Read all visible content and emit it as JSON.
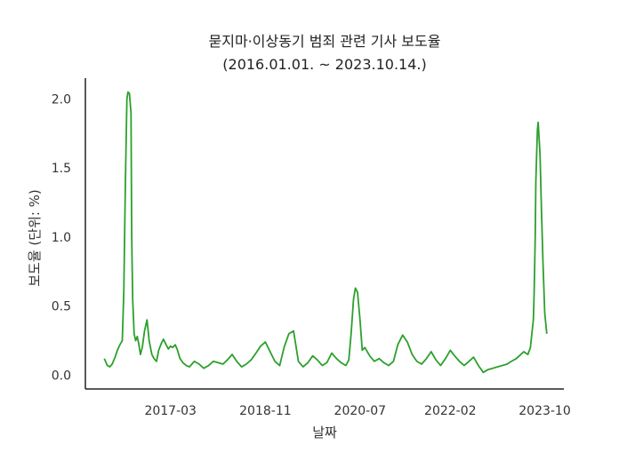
{
  "chart_data": {
    "type": "line",
    "title": "묻지마·이상동기 범죄 관련 기사 보도율",
    "subtitle": "(2016.01.01. ~ 2023.10.14.)",
    "xlabel": "날짜",
    "ylabel": "보도율 (단위: %)",
    "xlim": [
      "2015-09-01",
      "2024-02-01"
    ],
    "ylim": [
      -0.1,
      2.15
    ],
    "x_ticks": [
      {
        "date": "2017-03-01",
        "label": "2017-03"
      },
      {
        "date": "2018-11-01",
        "label": "2018-11"
      },
      {
        "date": "2020-07-01",
        "label": "2020-07"
      },
      {
        "date": "2022-02-01",
        "label": "2022-02"
      },
      {
        "date": "2023-10-01",
        "label": "2023-10"
      }
    ],
    "y_ticks": [
      {
        "value": 0.0,
        "label": "0.0"
      },
      {
        "value": 0.5,
        "label": "0.5"
      },
      {
        "value": 1.0,
        "label": "1.0"
      },
      {
        "value": 1.5,
        "label": "1.5"
      },
      {
        "value": 2.0,
        "label": "2.0"
      }
    ],
    "grid": false,
    "legend": "none",
    "line_color": "#2ca02c",
    "series": [
      {
        "x": [
          "2016-01-01",
          "2016-01-20",
          "2016-02-05",
          "2016-02-20",
          "2016-03-10",
          "2016-03-25",
          "2016-04-10",
          "2016-04-25",
          "2016-05-05",
          "2016-05-15",
          "2016-05-25",
          "2016-06-01",
          "2016-06-10",
          "2016-06-20",
          "2016-06-25",
          "2016-07-01",
          "2016-07-10",
          "2016-07-20",
          "2016-07-30",
          "2016-08-10",
          "2016-08-20",
          "2016-09-01",
          "2016-09-15",
          "2016-10-01",
          "2016-10-15",
          "2016-11-01",
          "2016-11-15",
          "2016-12-01",
          "2016-12-15",
          "2017-01-01",
          "2017-01-15",
          "2017-02-01",
          "2017-02-15",
          "2017-03-01",
          "2017-03-15",
          "2017-04-01",
          "2017-04-15",
          "2017-05-01",
          "2017-05-20",
          "2017-06-10",
          "2017-07-01",
          "2017-08-01",
          "2017-09-01",
          "2017-10-01",
          "2017-11-01",
          "2017-12-01",
          "2018-01-01",
          "2018-02-01",
          "2018-03-01",
          "2018-04-01",
          "2018-05-01",
          "2018-06-01",
          "2018-07-01",
          "2018-08-01",
          "2018-09-01",
          "2018-10-01",
          "2018-11-01",
          "2018-12-01",
          "2019-01-01",
          "2019-02-01",
          "2019-03-01",
          "2019-04-01",
          "2019-05-01",
          "2019-06-01",
          "2019-07-01",
          "2019-08-01",
          "2019-09-01",
          "2019-10-01",
          "2019-11-01",
          "2019-12-01",
          "2020-01-01",
          "2020-02-01",
          "2020-03-01",
          "2020-04-01",
          "2020-04-20",
          "2020-05-05",
          "2020-05-20",
          "2020-06-01",
          "2020-06-15",
          "2020-07-01",
          "2020-07-15",
          "2020-08-01",
          "2020-09-01",
          "2020-10-01",
          "2020-11-01",
          "2020-12-01",
          "2021-01-01",
          "2021-02-01",
          "2021-03-01",
          "2021-04-01",
          "2021-05-01",
          "2021-06-01",
          "2021-07-01",
          "2021-08-01",
          "2021-09-01",
          "2021-10-01",
          "2021-11-01",
          "2021-12-01",
          "2022-01-01",
          "2022-02-01",
          "2022-03-01",
          "2022-04-01",
          "2022-05-01",
          "2022-06-01",
          "2022-07-01",
          "2022-08-01",
          "2022-09-01",
          "2022-10-01",
          "2022-11-01",
          "2022-12-01",
          "2023-01-01",
          "2023-02-01",
          "2023-03-01",
          "2023-04-01",
          "2023-05-01",
          "2023-05-20",
          "2023-06-01",
          "2023-06-15",
          "2023-07-01",
          "2023-07-10",
          "2023-07-20",
          "2023-07-25",
          "2023-08-01",
          "2023-08-05",
          "2023-08-10",
          "2023-08-15",
          "2023-08-20",
          "2023-09-01",
          "2023-09-10",
          "2023-09-20",
          "2023-10-01",
          "2023-10-14"
        ],
        "values": [
          0.12,
          0.07,
          0.06,
          0.08,
          0.13,
          0.18,
          0.22,
          0.25,
          0.6,
          1.4,
          2.0,
          2.05,
          2.04,
          1.9,
          1.0,
          0.55,
          0.3,
          0.25,
          0.28,
          0.22,
          0.15,
          0.2,
          0.32,
          0.4,
          0.25,
          0.15,
          0.12,
          0.1,
          0.18,
          0.23,
          0.26,
          0.22,
          0.19,
          0.21,
          0.2,
          0.22,
          0.18,
          0.12,
          0.09,
          0.07,
          0.06,
          0.1,
          0.08,
          0.05,
          0.07,
          0.1,
          0.09,
          0.08,
          0.11,
          0.15,
          0.1,
          0.06,
          0.08,
          0.11,
          0.16,
          0.21,
          0.24,
          0.17,
          0.1,
          0.07,
          0.2,
          0.3,
          0.32,
          0.1,
          0.06,
          0.09,
          0.14,
          0.11,
          0.07,
          0.09,
          0.16,
          0.12,
          0.09,
          0.07,
          0.11,
          0.3,
          0.55,
          0.63,
          0.6,
          0.4,
          0.18,
          0.2,
          0.14,
          0.1,
          0.12,
          0.09,
          0.07,
          0.1,
          0.22,
          0.29,
          0.24,
          0.15,
          0.1,
          0.08,
          0.12,
          0.17,
          0.11,
          0.07,
          0.12,
          0.18,
          0.14,
          0.1,
          0.07,
          0.1,
          0.13,
          0.07,
          0.02,
          0.04,
          0.05,
          0.06,
          0.07,
          0.08,
          0.1,
          0.12,
          0.15,
          0.17,
          0.16,
          0.15,
          0.2,
          0.3,
          0.4,
          0.6,
          1.0,
          1.4,
          1.6,
          1.78,
          1.83,
          1.6,
          1.2,
          0.8,
          0.45,
          0.3
        ]
      }
    ]
  }
}
